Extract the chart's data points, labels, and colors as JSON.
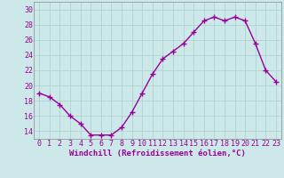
{
  "x": [
    0,
    1,
    2,
    3,
    4,
    5,
    6,
    7,
    8,
    9,
    10,
    11,
    12,
    13,
    14,
    15,
    16,
    17,
    18,
    19,
    20,
    21,
    22,
    23
  ],
  "y": [
    19.0,
    18.5,
    17.5,
    16.0,
    15.0,
    13.5,
    13.5,
    13.5,
    14.5,
    16.5,
    19.0,
    21.5,
    23.5,
    24.5,
    25.5,
    27.0,
    28.5,
    29.0,
    28.5,
    29.0,
    28.5,
    25.5,
    22.0,
    20.5
  ],
  "line_color": "#990099",
  "marker": "+",
  "marker_size": 4,
  "bg_color": "#cce8e8",
  "grid_color": "#aacece",
  "xlabel": "Windchill (Refroidissement éolien,°C)",
  "xlabel_color": "#990099",
  "tick_color": "#990099",
  "xlim": [
    -0.5,
    23.5
  ],
  "ylim": [
    13.0,
    31.0
  ],
  "yticks": [
    14,
    16,
    18,
    20,
    22,
    24,
    26,
    28,
    30
  ],
  "xticks": [
    0,
    1,
    2,
    3,
    4,
    5,
    6,
    7,
    8,
    9,
    10,
    11,
    12,
    13,
    14,
    15,
    16,
    17,
    18,
    19,
    20,
    21,
    22,
    23
  ],
  "font_size_label": 6.5,
  "font_size_tick": 6,
  "line_width": 1.0
}
